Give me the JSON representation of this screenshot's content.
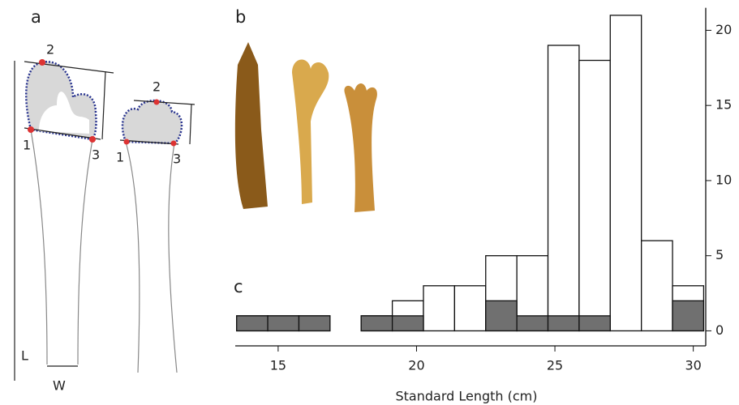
{
  "diagram": {
    "panel_a": "a",
    "panel_b": "b",
    "panel_c": "c",
    "landmarks_left": [
      "1",
      "2",
      "3"
    ],
    "landmarks_right": [
      "1",
      "2",
      "3"
    ],
    "length": "L",
    "width": "W"
  },
  "chart_data": {
    "type": "histogram",
    "xlabel": "Standard Length (cm)",
    "bins": [
      13.5,
      14.625,
      15.75,
      16.875,
      18,
      19.125,
      20.25,
      21.375,
      22.5,
      23.625,
      24.75,
      25.875,
      27,
      28.125,
      29.25,
      30.375
    ],
    "series": [
      {
        "color": "#ffffff",
        "values": [
          1,
          1,
          1,
          0,
          1,
          2,
          3,
          3,
          5,
          5,
          19,
          18,
          21,
          6,
          3
        ]
      },
      {
        "color": "#707070",
        "values": [
          1,
          1,
          1,
          0,
          1,
          1,
          0,
          0,
          2,
          1,
          1,
          1,
          0,
          0,
          2
        ]
      }
    ],
    "xlim": [
      13.45,
      30.45
    ],
    "ylim": [
      -1,
      21.5
    ],
    "xticks": [
      15,
      20,
      25,
      30
    ],
    "yticks": [
      0,
      5,
      10,
      15,
      20
    ]
  }
}
